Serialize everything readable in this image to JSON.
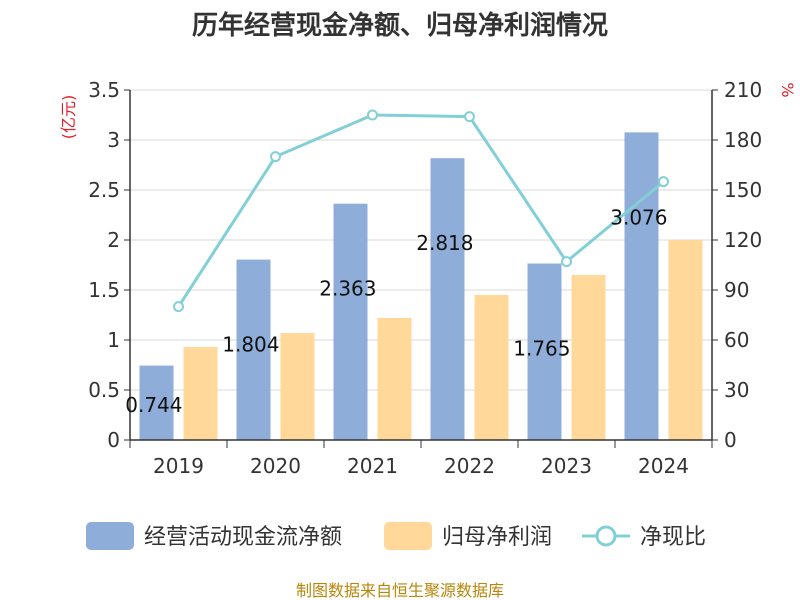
{
  "chart_data": {
    "type": "bar",
    "title": "历年经营现金净额、归母净利润情况",
    "categories": [
      "2019",
      "2020",
      "2021",
      "2022",
      "2023",
      "2024"
    ],
    "series": [
      {
        "name": "经营活动现金流净额",
        "type": "bar",
        "axis": "left",
        "values": [
          0.744,
          1.804,
          2.363,
          2.818,
          1.765,
          3.076
        ],
        "color": "#8eadd9"
      },
      {
        "name": "归母净利润",
        "type": "bar",
        "axis": "left",
        "values": [
          0.93,
          1.07,
          1.22,
          1.45,
          1.65,
          2.0
        ],
        "color": "#ffd89a"
      },
      {
        "name": "净现比",
        "type": "line",
        "axis": "right",
        "values": [
          80,
          170,
          195,
          194,
          107,
          155
        ],
        "color": "#82d0d6"
      }
    ],
    "data_labels": [
      "0.744",
      "1.804",
      "2.363",
      "2.818",
      "1.765",
      "3.076"
    ],
    "y_left": {
      "label": "(亿元)",
      "ylim": [
        0,
        3.5
      ],
      "ticks": [
        "0",
        "0.5",
        "1",
        "1.5",
        "2",
        "2.5",
        "3",
        "3.5"
      ]
    },
    "y_right": {
      "label": "%",
      "ylim": [
        0,
        210
      ],
      "ticks": [
        "0",
        "30",
        "60",
        "90",
        "120",
        "150",
        "180",
        "210"
      ]
    },
    "grid": true,
    "legend_position": "bottom"
  },
  "footer": {
    "source": "制图数据来自恒生聚源数据库"
  },
  "colors": {
    "grid": "#d9d9d9",
    "axis": "#333333",
    "unit_label": "#e0202a",
    "source": "#b8860b"
  }
}
